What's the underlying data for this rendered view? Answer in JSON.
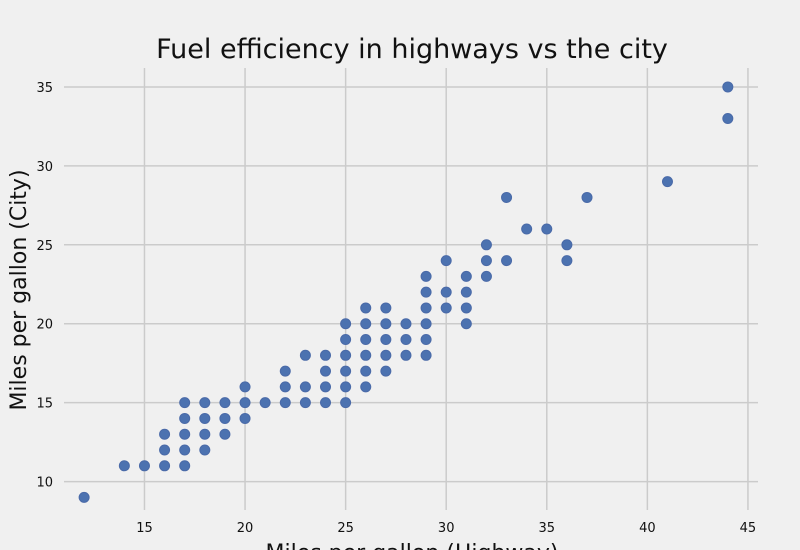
{
  "chart_data": {
    "type": "scatter",
    "title": "Fuel efficiency in highways vs the city",
    "xlabel": "Miles per gallon (Highway)",
    "ylabel": "Miles per gallon (City)",
    "xlim": [
      11,
      45.5
    ],
    "ylim": [
      8.2,
      36.2
    ],
    "x_ticks": [
      15,
      20,
      25,
      30,
      35,
      40,
      45
    ],
    "y_ticks": [
      10,
      15,
      20,
      25,
      30,
      35
    ],
    "grid": true,
    "legend": "none",
    "colors": {
      "background": "#f0f0f0",
      "grid": "#cbcbcb",
      "point": "#4c72b0"
    },
    "points": [
      [
        12,
        9
      ],
      [
        14,
        11
      ],
      [
        15,
        11
      ],
      [
        16,
        11
      ],
      [
        16,
        12
      ],
      [
        16,
        13
      ],
      [
        17,
        11
      ],
      [
        17,
        12
      ],
      [
        17,
        13
      ],
      [
        17,
        14
      ],
      [
        17,
        15
      ],
      [
        18,
        12
      ],
      [
        18,
        13
      ],
      [
        18,
        14
      ],
      [
        18,
        15
      ],
      [
        19,
        13
      ],
      [
        19,
        14
      ],
      [
        19,
        15
      ],
      [
        20,
        14
      ],
      [
        20,
        15
      ],
      [
        20,
        16
      ],
      [
        21,
        15
      ],
      [
        22,
        15
      ],
      [
        22,
        16
      ],
      [
        22,
        17
      ],
      [
        23,
        15
      ],
      [
        23,
        16
      ],
      [
        23,
        18
      ],
      [
        24,
        15
      ],
      [
        24,
        16
      ],
      [
        24,
        17
      ],
      [
        24,
        18
      ],
      [
        25,
        15
      ],
      [
        25,
        16
      ],
      [
        25,
        17
      ],
      [
        25,
        18
      ],
      [
        25,
        19
      ],
      [
        25,
        20
      ],
      [
        26,
        16
      ],
      [
        26,
        17
      ],
      [
        26,
        18
      ],
      [
        26,
        19
      ],
      [
        26,
        20
      ],
      [
        26,
        21
      ],
      [
        27,
        17
      ],
      [
        27,
        18
      ],
      [
        27,
        19
      ],
      [
        27,
        20
      ],
      [
        27,
        21
      ],
      [
        28,
        18
      ],
      [
        28,
        19
      ],
      [
        28,
        20
      ],
      [
        29,
        18
      ],
      [
        29,
        19
      ],
      [
        29,
        20
      ],
      [
        29,
        21
      ],
      [
        29,
        22
      ],
      [
        29,
        23
      ],
      [
        30,
        21
      ],
      [
        30,
        22
      ],
      [
        30,
        24
      ],
      [
        31,
        20
      ],
      [
        31,
        21
      ],
      [
        31,
        22
      ],
      [
        31,
        23
      ],
      [
        32,
        23
      ],
      [
        32,
        24
      ],
      [
        32,
        25
      ],
      [
        33,
        24
      ],
      [
        33,
        28
      ],
      [
        34,
        26
      ],
      [
        35,
        26
      ],
      [
        36,
        24
      ],
      [
        36,
        25
      ],
      [
        37,
        28
      ],
      [
        41,
        29
      ],
      [
        44,
        33
      ],
      [
        44,
        35
      ]
    ]
  }
}
